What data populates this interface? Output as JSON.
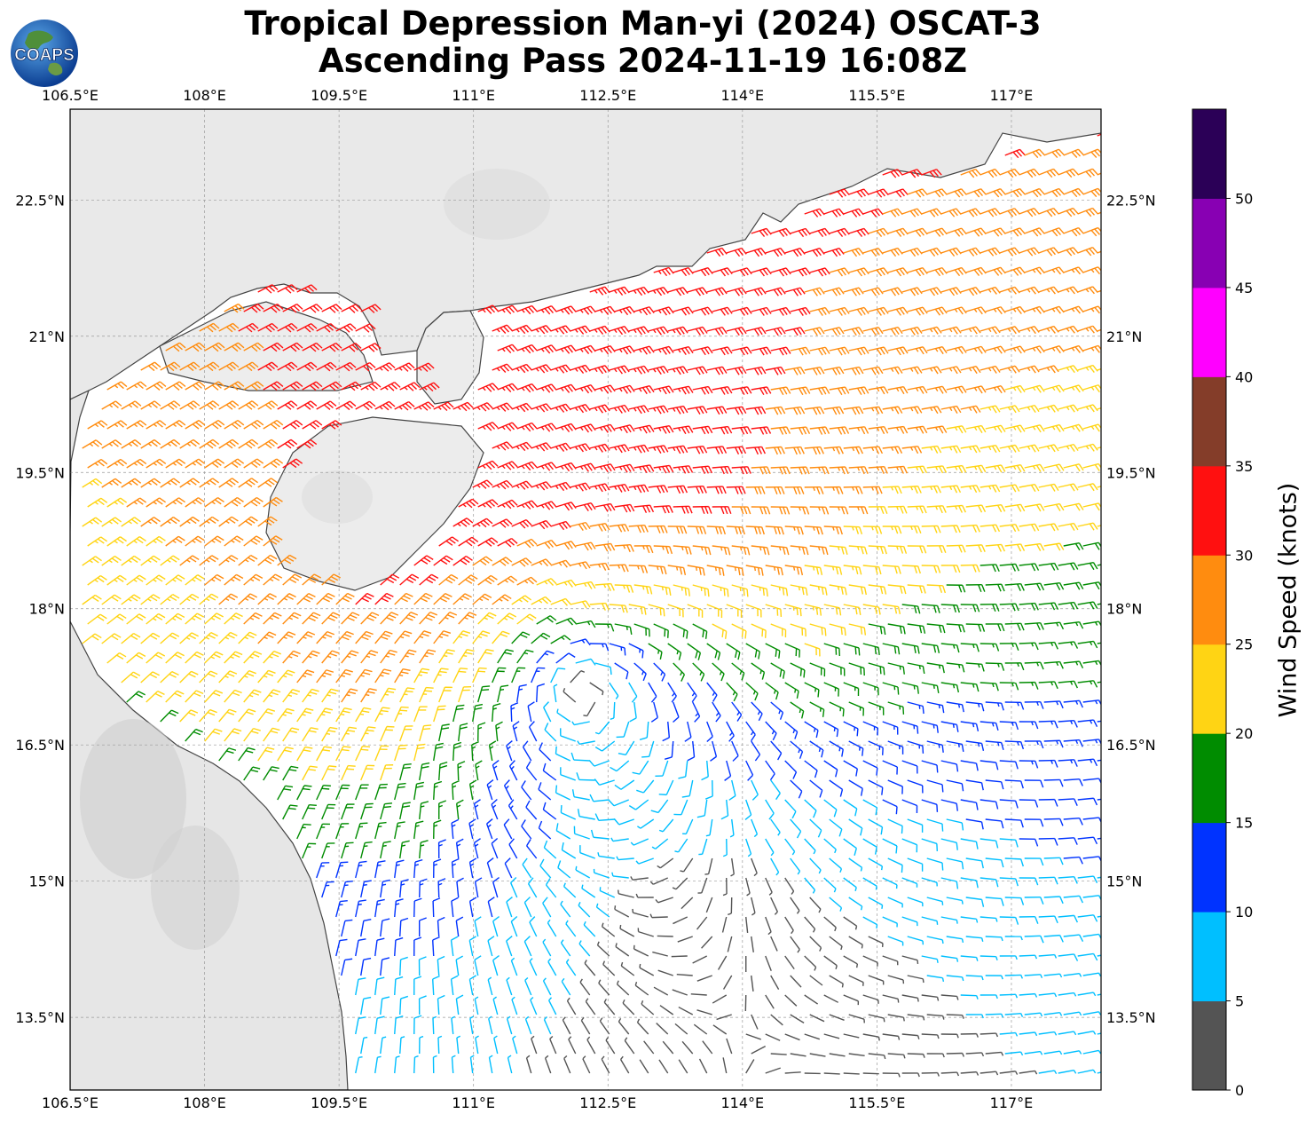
{
  "title": {
    "line1": "Tropical Depression Man-yi (2024) OSCAT-3",
    "line2": "Ascending Pass 2024-11-19 16:08Z"
  },
  "logo": {
    "text": "COAPS",
    "icon": "coaps-globe-logo"
  },
  "map": {
    "lon_range": [
      106.5,
      118.0
    ],
    "lat_range": [
      12.7,
      23.5
    ],
    "lon_ticks": [
      "106.5°E",
      "108°E",
      "109.5°E",
      "111°E",
      "112.5°E",
      "114°E",
      "115.5°E",
      "117°E"
    ],
    "lat_ticks": [
      "22.5°N",
      "21°N",
      "19.5°N",
      "18°N",
      "16.5°N",
      "15°N",
      "13.5°N"
    ],
    "gridlines": true,
    "storm_center": {
      "lon": 112.2,
      "lat": 17.1
    },
    "wind_speed_max_kt": 34
  },
  "colorbar": {
    "title": "Wind Speed (knots)",
    "tick_labels": [
      "0",
      "5",
      "10",
      "15",
      "20",
      "25",
      "30",
      "35",
      "40",
      "45",
      "50"
    ],
    "bins": [
      {
        "min": 0,
        "max": 5,
        "color": "#545454"
      },
      {
        "min": 5,
        "max": 10,
        "color": "#00bfff"
      },
      {
        "min": 10,
        "max": 15,
        "color": "#0033ff"
      },
      {
        "min": 15,
        "max": 20,
        "color": "#008c00"
      },
      {
        "min": 20,
        "max": 25,
        "color": "#ffd414"
      },
      {
        "min": 25,
        "max": 30,
        "color": "#ff8c0f"
      },
      {
        "min": 30,
        "max": 35,
        "color": "#ff1010"
      },
      {
        "min": 35,
        "max": 40,
        "color": "#843d29"
      },
      {
        "min": 40,
        "max": 45,
        "color": "#ff00ff"
      },
      {
        "min": 45,
        "max": 50,
        "color": "#8800b3"
      },
      {
        "min": 50,
        "max": 55,
        "color": "#2b0057"
      }
    ]
  }
}
